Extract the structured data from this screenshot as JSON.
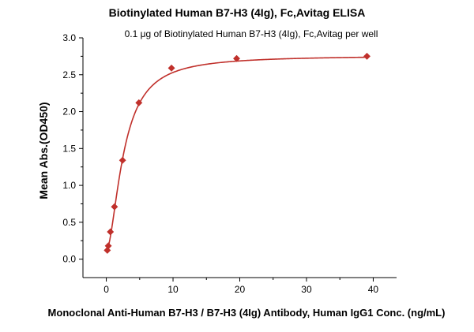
{
  "chart_data": {
    "type": "scatter",
    "title": "Biotinylated Human B7-H3 (4Ig), Fc,Avitag ELISA",
    "subtitle": "0.1 μg of Biotinylated Human B7-H3 (4Ig), Fc,Avitag per well",
    "xlabel": "Monoclonal Anti-Human B7-H3 / B7-H3 (4Ig) Antibody, Human IgG1 Conc. (ng/mL)",
    "ylabel": "Mean Abs.(OD450)",
    "xlim": [
      -3.5,
      43.5
    ],
    "ylim": [
      -0.25,
      3.0
    ],
    "xticks": [
      0,
      10,
      20,
      30,
      40
    ],
    "yticks": [
      "0.0",
      "0.5",
      "1.0",
      "1.5",
      "2.0",
      "2.5",
      "3.0"
    ],
    "grid": false,
    "series": [
      {
        "color": "#c0302b",
        "marker": "diamond",
        "x": [
          0.15,
          0.3,
          0.61,
          1.22,
          2.44,
          4.88,
          9.77,
          19.53,
          39.06
        ],
        "y": [
          0.12,
          0.18,
          0.37,
          0.71,
          1.34,
          2.12,
          2.59,
          2.72,
          2.75
        ],
        "fit_curve": true
      }
    ]
  }
}
